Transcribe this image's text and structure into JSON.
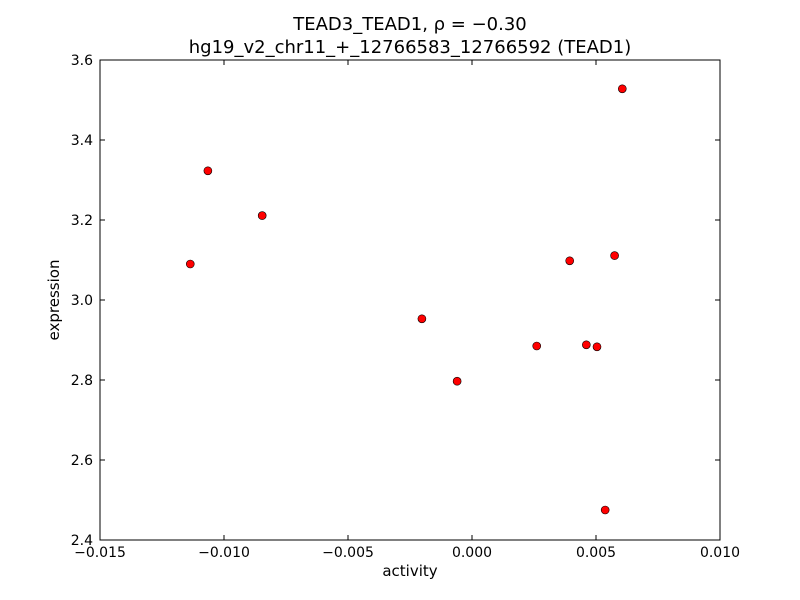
{
  "chart_data": {
    "type": "scatter",
    "title_line1": "TEAD3_TEAD1, ρ = −0.30",
    "title_line2": "hg19_v2_chr11_+_12766583_12766592 (TEAD1)",
    "xlabel": "activity",
    "ylabel": "expression",
    "xlim": [
      -0.015,
      0.01
    ],
    "ylim": [
      2.4,
      3.6
    ],
    "xticks": [
      -0.015,
      -0.01,
      -0.005,
      0.0,
      0.005,
      0.01
    ],
    "xtick_labels": [
      "−0.015",
      "−0.010",
      "−0.005",
      "0.000",
      "0.005",
      "0.010"
    ],
    "yticks": [
      2.4,
      2.6,
      2.8,
      3.0,
      3.2,
      3.4,
      3.6
    ],
    "ytick_labels": [
      "2.4",
      "2.6",
      "2.8",
      "3.0",
      "3.2",
      "3.4",
      "3.6"
    ],
    "grid": false,
    "marker_color": "#ff0000",
    "points": [
      {
        "x": -0.01136,
        "y": 3.09
      },
      {
        "x": -0.01065,
        "y": 3.323
      },
      {
        "x": -0.00846,
        "y": 3.211
      },
      {
        "x": -0.00202,
        "y": 2.953
      },
      {
        "x": -0.0006,
        "y": 2.797
      },
      {
        "x": 0.00261,
        "y": 2.885
      },
      {
        "x": 0.00394,
        "y": 3.098
      },
      {
        "x": 0.00461,
        "y": 2.888
      },
      {
        "x": 0.00504,
        "y": 2.883
      },
      {
        "x": 0.00537,
        "y": 2.475
      },
      {
        "x": 0.00575,
        "y": 3.111
      },
      {
        "x": 0.00606,
        "y": 3.528
      }
    ]
  }
}
